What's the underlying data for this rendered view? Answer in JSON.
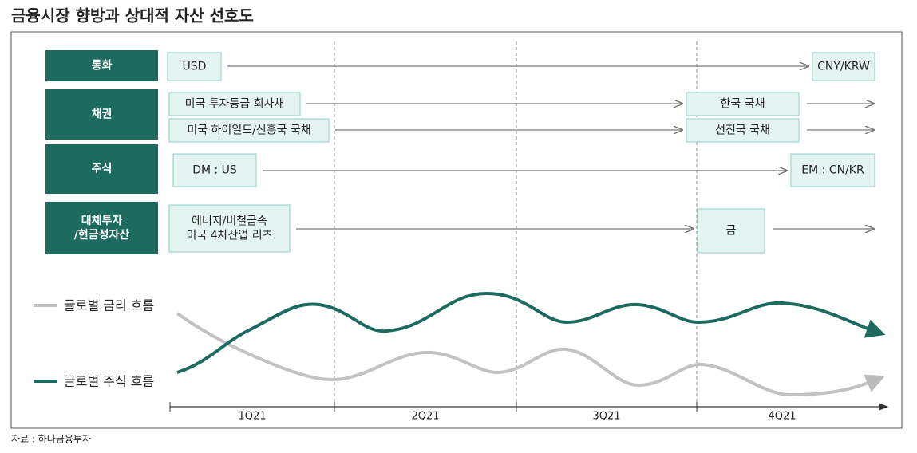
{
  "title": "금융시장 향방과 상대적 자산 선호도",
  "rows": [
    {
      "label": [
        "통화"
      ],
      "lines": [
        {
          "from": [
            "USD"
          ],
          "to": [
            "CNY/KRW"
          ]
        }
      ]
    },
    {
      "label": [
        "채권"
      ],
      "lines": [
        {
          "from": [
            "미국 투자등급 회사채"
          ],
          "to": [
            "한국 국채"
          ]
        },
        {
          "from": [
            "미국 하이일드/신흥국 국채"
          ],
          "to": [
            "선진국 국채"
          ]
        }
      ]
    },
    {
      "label": [
        "주식"
      ],
      "lines": [
        {
          "from": [
            "DM : US"
          ],
          "to": [
            "EM : CN/KR"
          ]
        }
      ]
    },
    {
      "label": [
        "대체투자",
        "/현금성자산"
      ],
      "lines": [
        {
          "from": [
            "에너지/비철금속",
            "미국 4차산업 리츠"
          ],
          "to": [
            "금"
          ]
        }
      ]
    }
  ],
  "legend": [
    "글로벌 금리 흐름",
    "글로벌 주식 흐름"
  ],
  "quarters": [
    "1Q21",
    "2Q21",
    "3Q21",
    "4Q21"
  ],
  "source": "자료 : 하나금융투자"
}
